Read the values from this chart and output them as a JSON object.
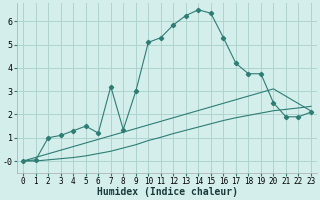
{
  "xlabel": "Humidex (Indice chaleur)",
  "bg_color": "#d4eeec",
  "grid_color": "#aed4d0",
  "line_color": "#2d7d74",
  "xlim": [
    -0.5,
    23.5
  ],
  "ylim": [
    -0.5,
    6.8
  ],
  "xticks": [
    0,
    1,
    2,
    3,
    4,
    5,
    6,
    7,
    8,
    9,
    10,
    11,
    12,
    13,
    14,
    15,
    16,
    17,
    18,
    19,
    20,
    21,
    22,
    23
  ],
  "yticks": [
    0,
    1,
    2,
    3,
    4,
    5,
    6
  ],
  "ytick_labels": [
    "-0",
    "1",
    "2",
    "3",
    "4",
    "5",
    "6"
  ],
  "series1_x": [
    0,
    1,
    2,
    3,
    4,
    5,
    6,
    7,
    8,
    9,
    10,
    11,
    12,
    13,
    14,
    15,
    16,
    17,
    18,
    19,
    20,
    21,
    22,
    23
  ],
  "series1_y": [
    0.0,
    0.05,
    1.0,
    1.1,
    1.3,
    1.5,
    1.2,
    3.2,
    1.35,
    3.0,
    5.1,
    5.3,
    5.85,
    6.25,
    6.5,
    6.35,
    5.3,
    4.2,
    3.75,
    3.75,
    2.5,
    1.9,
    1.9,
    2.1
  ],
  "series2_x": [
    0,
    1,
    2,
    3,
    4,
    5,
    6,
    7,
    8,
    9,
    10,
    11,
    12,
    13,
    14,
    15,
    16,
    17,
    18,
    19,
    20,
    21,
    22,
    23
  ],
  "series2_y": [
    0.0,
    0.0,
    0.05,
    0.1,
    0.15,
    0.22,
    0.32,
    0.42,
    0.56,
    0.7,
    0.88,
    1.02,
    1.18,
    1.32,
    1.46,
    1.6,
    1.74,
    1.86,
    1.96,
    2.06,
    2.16,
    2.22,
    2.28,
    2.35
  ],
  "series3_x": [
    0,
    20,
    23
  ],
  "series3_y": [
    0.0,
    3.1,
    2.15
  ]
}
